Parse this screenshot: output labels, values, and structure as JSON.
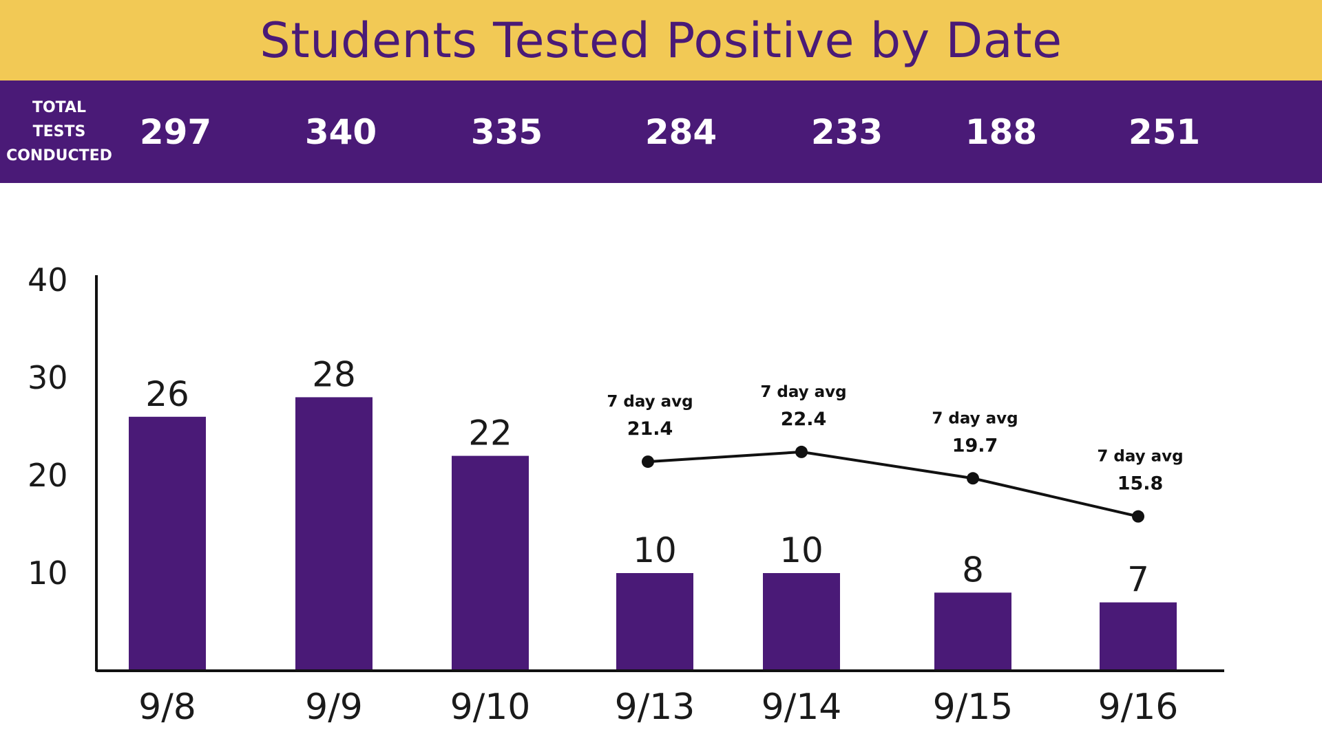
{
  "colors": {
    "banner": "#f2c955",
    "purple": "#4a1a77",
    "text": "#1a1a1a",
    "line": "#111111"
  },
  "title": "Students Tested Positive by Date",
  "tests": {
    "label_lines": [
      "TOTAL",
      "TESTS",
      "CONDUCTED"
    ],
    "counts": [
      "297",
      "340",
      "335",
      "284",
      "233",
      "188",
      "251"
    ]
  },
  "chart_data": {
    "type": "bar",
    "title": "Students Tested Positive by Date",
    "categories": [
      "9/8",
      "9/9",
      "9/10",
      "9/13",
      "9/14",
      "9/15",
      "9/16"
    ],
    "values": [
      26,
      28,
      22,
      10,
      10,
      8,
      7
    ],
    "ylim": [
      0,
      40
    ],
    "yticks": [
      10,
      20,
      30,
      40
    ],
    "xlabel": "",
    "ylabel": "",
    "grid": false,
    "overlay": {
      "type": "line",
      "caption": "7 day avg",
      "categories": [
        "9/13",
        "9/14",
        "9/15",
        "9/16"
      ],
      "values": [
        21.4,
        22.4,
        19.7,
        15.8
      ],
      "labels": [
        "21.4",
        "22.4",
        "19.7",
        "15.8"
      ]
    }
  }
}
